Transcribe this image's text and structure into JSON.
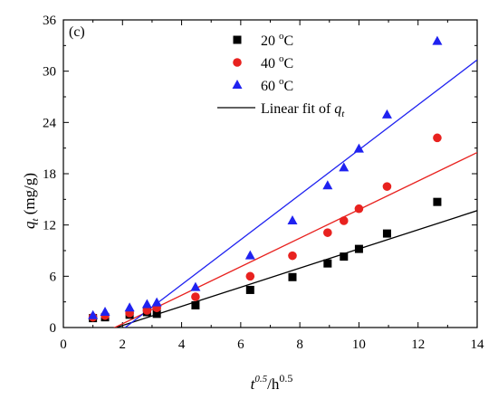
{
  "chart_data": {
    "type": "scatter",
    "panel_label": "(c)",
    "xlabel": {
      "t": "t",
      "sup_t": "0.5",
      "rest": "/h",
      "sup_h": "0.5"
    },
    "ylabel": {
      "q": "q",
      "sub": "t",
      "unit": " (mg/g)"
    },
    "xlim": [
      0,
      14
    ],
    "ylim": [
      0,
      36
    ],
    "xticks": [
      0,
      2,
      4,
      6,
      8,
      10,
      12,
      14
    ],
    "yticks": [
      0,
      6,
      12,
      18,
      24,
      30,
      36
    ],
    "grid": false,
    "legend_position": "top-right",
    "series": [
      {
        "name": "20 °C",
        "label_num": "20 ",
        "label_unit": "oC",
        "marker": "square",
        "color": "#000000",
        "x": [
          1.0,
          1.41,
          2.24,
          2.83,
          3.16,
          4.47,
          6.32,
          7.75,
          8.94,
          9.49,
          10.0,
          10.95,
          12.65
        ],
        "y": [
          1.1,
          1.2,
          1.5,
          1.8,
          1.6,
          2.6,
          4.4,
          5.9,
          7.5,
          8.3,
          9.2,
          11.0,
          14.7
        ],
        "fit": {
          "slope": 1.12,
          "intercept": -2.0
        },
        "fit_color": "#000000"
      },
      {
        "name": "40 °C",
        "label_num": "40 ",
        "label_unit": "oC",
        "marker": "circle",
        "color": "#e8221f",
        "x": [
          1.0,
          1.41,
          2.24,
          2.83,
          3.16,
          4.47,
          6.32,
          7.75,
          8.94,
          9.49,
          10.0,
          10.95,
          12.65
        ],
        "y": [
          1.2,
          1.4,
          1.7,
          2.0,
          2.3,
          3.6,
          6.0,
          8.4,
          11.1,
          12.5,
          13.9,
          16.5,
          22.2
        ],
        "fit": {
          "slope": 1.67,
          "intercept": -2.9
        },
        "fit_color": "#e8221f"
      },
      {
        "name": "60 °C",
        "label_num": "60 ",
        "label_unit": "oC",
        "marker": "triangle",
        "color": "#1f22f0",
        "x": [
          1.0,
          1.41,
          2.24,
          2.83,
          3.16,
          4.47,
          6.32,
          7.75,
          8.94,
          9.49,
          10.0,
          10.95,
          12.65
        ],
        "y": [
          1.4,
          1.8,
          2.3,
          2.7,
          2.9,
          4.7,
          8.4,
          12.5,
          16.6,
          18.7,
          20.9,
          24.9,
          33.5
        ],
        "fit": {
          "slope": 2.63,
          "intercept": -5.5
        },
        "fit_color": "#1f22f0"
      }
    ],
    "fit_legend": {
      "text": "Linear fit of ",
      "var": "q",
      "sub": "t",
      "color": "#000000"
    }
  }
}
